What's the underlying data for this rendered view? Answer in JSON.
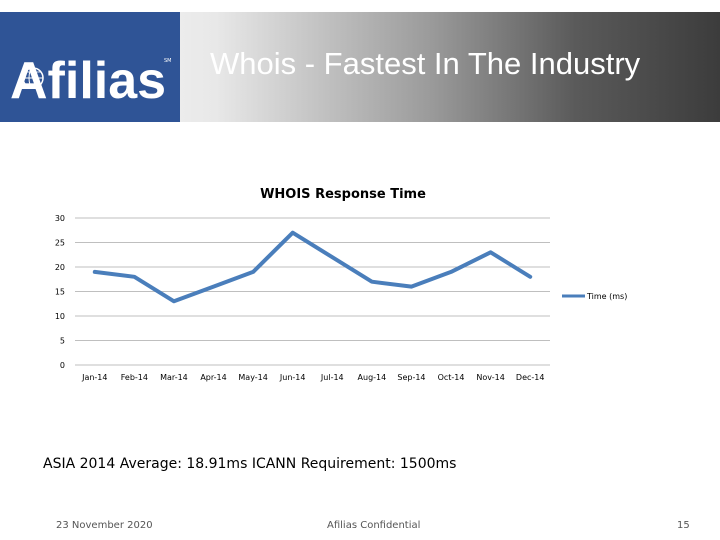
{
  "slide": {
    "title": "Whois - Fastest In The Industry",
    "logo_text": "Afilias",
    "logo_mark": "SM",
    "note": "ASIA 2014 Average: 18.91ms ICANN Requirement: 1500ms",
    "footer_date": "23 November 2020",
    "footer_center": "Afilias Confidential",
    "page_number": "15"
  },
  "colors": {
    "brand": "#2f5496",
    "series": "#4a7ebb",
    "gridline": "#bfbfbf"
  },
  "chart_data": {
    "type": "line",
    "title": "WHOIS Response Time",
    "xlabel": "",
    "ylabel": "",
    "categories": [
      "Jan-14",
      "Feb-14",
      "Mar-14",
      "Apr-14",
      "May-14",
      "Jun-14",
      "Jul-14",
      "Aug-14",
      "Sep-14",
      "Oct-14",
      "Nov-14",
      "Dec-14"
    ],
    "series": [
      {
        "name": "Time (ms)",
        "values": [
          19,
          18,
          13,
          16,
          19,
          27,
          22,
          17,
          16,
          19,
          23,
          18
        ]
      }
    ],
    "ylim": [
      0,
      30
    ],
    "yticks": [
      0,
      5,
      10,
      15,
      20,
      25,
      30
    ],
    "grid": true,
    "legend": "right"
  }
}
